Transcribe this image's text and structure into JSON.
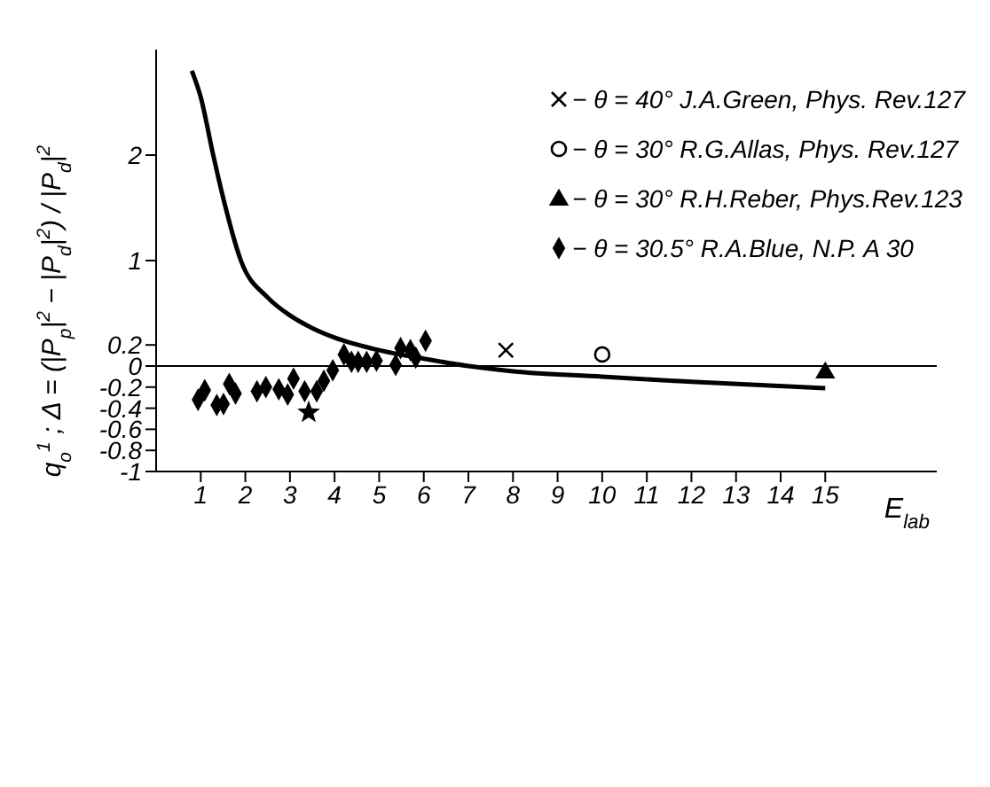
{
  "chart_data": {
    "type": "scatter",
    "xlabel": "E$_{lab}$",
    "ylabel": "q$_{o}$$^{1}$ ; Δ = (|P$_{p}$|$^{2}$ − |P$_{d}$|$^{2}$) / |P$_{d}$|$^{2}$",
    "xlim": [
      0,
      17.5
    ],
    "xticks": [
      1,
      2,
      3,
      4,
      5,
      6,
      7,
      8,
      9,
      10,
      11,
      12,
      13,
      14,
      15
    ],
    "ylim": [
      -1,
      3
    ],
    "yticks": [
      -1,
      -0.8,
      -0.6,
      -0.4,
      -0.2,
      0,
      0.2,
      1,
      2
    ],
    "grid": false,
    "legend": "top right",
    "ref_lines": [
      {
        "axis": "y",
        "value": 0,
        "color": "#000000"
      }
    ],
    "series": [
      {
        "name": "− θ = 40° J.A.Green, Phys. Rev.127",
        "marker": "cross",
        "color": "#000000",
        "x": [
          7.84
        ],
        "values": [
          0.15
        ]
      },
      {
        "name": "− θ = 30° R.G.Allas, Phys. Rev.127",
        "marker": "circle",
        "color": "#000000",
        "x": [
          10
        ],
        "values": [
          0.11
        ]
      },
      {
        "name": "− θ = 30° R.H.Reber, Phys.Rev.123",
        "marker": "triangle",
        "color": "#000000",
        "x": [
          15
        ],
        "values": [
          -0.05
        ]
      },
      {
        "name": "− θ = 30.5° R.A.Blue, N.P. A 30",
        "marker": "diamond",
        "color": "#000000",
        "x": [
          0.94,
          1.09,
          1.36,
          1.51,
          1.64,
          1.78,
          2.26,
          2.46,
          2.75,
          2.95,
          3.08,
          3.33,
          3.6,
          3.76,
          3.96,
          4.21,
          4.38,
          4.53,
          4.72,
          4.94,
          5.37,
          5.48,
          5.7,
          5.82,
          6.04
        ],
        "values": [
          -0.32,
          -0.23,
          -0.37,
          -0.36,
          -0.17,
          -0.26,
          -0.24,
          -0.2,
          -0.22,
          -0.27,
          -0.12,
          -0.24,
          -0.24,
          -0.14,
          -0.04,
          0.11,
          0.04,
          0.04,
          0.04,
          0.05,
          0.01,
          0.17,
          0.15,
          0.08,
          0.24
        ]
      },
      {
        "marker": "star",
        "color": "#000000",
        "x": [
          3.42
        ],
        "values": [
          -0.44
        ]
      },
      {
        "type": "line",
        "marker": "none",
        "line_style": "solid",
        "color": "#000000",
        "x": [
          0.8,
          1.0,
          1.28,
          1.5,
          1.9,
          2.5,
          3,
          3.5,
          4,
          5,
          6,
          7,
          8,
          10,
          12,
          15
        ],
        "values": [
          2.8,
          2.55,
          2,
          1.6,
          1,
          0.65,
          0.48,
          0.36,
          0.27,
          0.15,
          0.07,
          0,
          -0.05,
          -0.1,
          -0.15,
          -0.21
        ]
      }
    ]
  }
}
